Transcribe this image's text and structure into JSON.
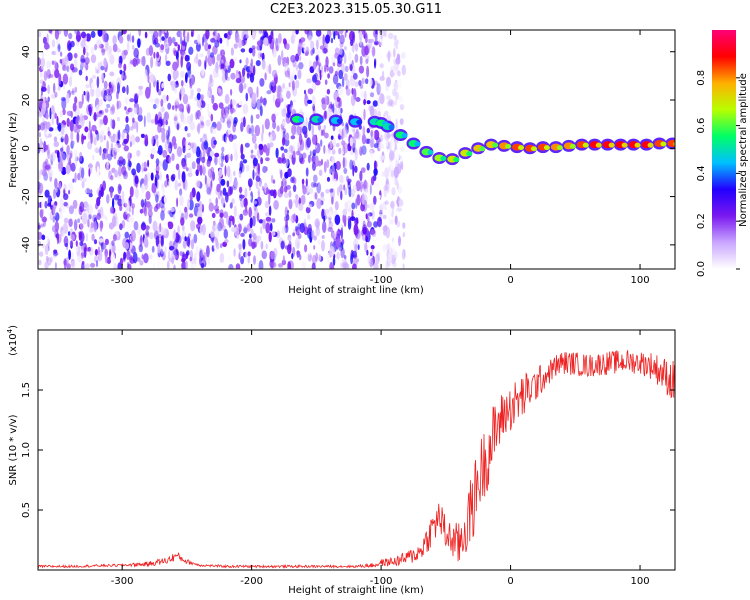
{
  "figure": {
    "title": "C2E3.2023.315.05.30.G11"
  },
  "chart_data": [
    {
      "type": "heatmap",
      "xlabel": "Height of straight line (km)",
      "ylabel": "Frequency (Hz)",
      "xlim": [
        -365,
        127
      ],
      "ylim": [
        -50,
        49
      ],
      "x_ticks": [
        -300,
        -200,
        -100,
        0,
        100
      ],
      "y_ticks": [
        -40,
        -20,
        0,
        20,
        40
      ],
      "grid": false,
      "colorbar": {
        "label": "Normalized spectral amplitude",
        "range": [
          0,
          1
        ],
        "ticks": [
          0.0,
          0.2,
          0.4,
          0.6,
          0.8
        ],
        "colormap": [
          "#ffffff",
          "#c9a6ff",
          "#7a18f0",
          "#2200ff",
          "#00bfff",
          "#00ff66",
          "#b8ff00",
          "#ffb000",
          "#ff0000",
          "#ff0077"
        ]
      },
      "noise_region": {
        "x": [
          -365,
          -90
        ],
        "amplitude": 0.35
      },
      "signal_track": [
        {
          "x": -165,
          "y": 12.0,
          "amp": 0.55
        },
        {
          "x": -150,
          "y": 12.0,
          "amp": 0.5
        },
        {
          "x": -135,
          "y": 11.5,
          "amp": 0.45
        },
        {
          "x": -120,
          "y": 11.0,
          "amp": 0.45
        },
        {
          "x": -105,
          "y": 11.0,
          "amp": 0.5
        },
        {
          "x": -100,
          "y": 10.5,
          "amp": 0.55
        },
        {
          "x": -95,
          "y": 9.0,
          "amp": 0.5
        },
        {
          "x": -85,
          "y": 5.5,
          "amp": 0.55
        },
        {
          "x": -75,
          "y": 2.0,
          "amp": 0.55
        },
        {
          "x": -65,
          "y": -1.5,
          "amp": 0.6
        },
        {
          "x": -55,
          "y": -4.0,
          "amp": 0.65
        },
        {
          "x": -45,
          "y": -4.5,
          "amp": 0.7
        },
        {
          "x": -35,
          "y": -2.0,
          "amp": 0.7
        },
        {
          "x": -25,
          "y": 0.0,
          "amp": 0.75
        },
        {
          "x": -15,
          "y": 1.5,
          "amp": 0.75
        },
        {
          "x": -5,
          "y": 1.0,
          "amp": 0.8
        },
        {
          "x": 5,
          "y": 0.5,
          "amp": 0.85
        },
        {
          "x": 15,
          "y": 0.0,
          "amp": 0.85
        },
        {
          "x": 25,
          "y": 0.5,
          "amp": 0.85
        },
        {
          "x": 35,
          "y": 0.5,
          "amp": 0.8
        },
        {
          "x": 45,
          "y": 1.0,
          "amp": 0.8
        },
        {
          "x": 55,
          "y": 1.5,
          "amp": 0.85
        },
        {
          "x": 65,
          "y": 1.5,
          "amp": 0.9
        },
        {
          "x": 75,
          "y": 1.5,
          "amp": 0.9
        },
        {
          "x": 85,
          "y": 1.5,
          "amp": 0.9
        },
        {
          "x": 95,
          "y": 1.5,
          "amp": 0.9
        },
        {
          "x": 105,
          "y": 1.5,
          "amp": 0.9
        },
        {
          "x": 115,
          "y": 2.0,
          "amp": 0.85
        },
        {
          "x": 125,
          "y": 2.0,
          "amp": 0.85
        }
      ]
    },
    {
      "type": "line",
      "xlabel": "Height of straight line (km)",
      "ylabel": "SNR (10 * v/v)",
      "y_scale_label": "(x10",
      "y_scale_exponent": "4",
      "y_scale_close": ")",
      "xlim": [
        -365,
        127
      ],
      "ylim": [
        0,
        2.0
      ],
      "x_ticks": [
        -300,
        -200,
        -100,
        0,
        100
      ],
      "y_ticks": [
        0.5,
        1.0,
        1.5
      ],
      "grid": false,
      "series": [
        {
          "color": "#ee2222",
          "x": [
            -365,
            -340,
            -300,
            -280,
            -265,
            -258,
            -250,
            -240,
            -220,
            -200,
            -180,
            -150,
            -120,
            -105,
            -100,
            -90,
            -80,
            -70,
            -60,
            -55,
            -50,
            -45,
            -40,
            -35,
            -30,
            -25,
            -20,
            -15,
            -10,
            -5,
            0,
            5,
            10,
            15,
            20,
            25,
            30,
            35,
            40,
            50,
            60,
            70,
            80,
            90,
            100,
            110,
            120,
            127
          ],
          "y": [
            0.03,
            0.03,
            0.04,
            0.05,
            0.08,
            0.12,
            0.07,
            0.04,
            0.03,
            0.03,
            0.03,
            0.03,
            0.03,
            0.04,
            0.06,
            0.07,
            0.1,
            0.15,
            0.35,
            0.45,
            0.3,
            0.25,
            0.2,
            0.35,
            0.5,
            0.75,
            0.9,
            1.05,
            1.2,
            1.3,
            1.35,
            1.4,
            1.45,
            1.5,
            1.55,
            1.6,
            1.65,
            1.7,
            1.73,
            1.72,
            1.7,
            1.72,
            1.73,
            1.74,
            1.73,
            1.7,
            1.62,
            1.55
          ],
          "noise_amplitude": [
            0.01,
            0.01,
            0.01,
            0.02,
            0.03,
            0.04,
            0.02,
            0.01,
            0.01,
            0.01,
            0.01,
            0.01,
            0.01,
            0.02,
            0.03,
            0.04,
            0.06,
            0.08,
            0.15,
            0.15,
            0.15,
            0.15,
            0.2,
            0.25,
            0.3,
            0.3,
            0.3,
            0.3,
            0.25,
            0.2,
            0.2,
            0.2,
            0.2,
            0.15,
            0.15,
            0.12,
            0.1,
            0.1,
            0.1,
            0.1,
            0.1,
            0.1,
            0.1,
            0.1,
            0.1,
            0.12,
            0.15,
            0.2
          ]
        }
      ]
    }
  ]
}
